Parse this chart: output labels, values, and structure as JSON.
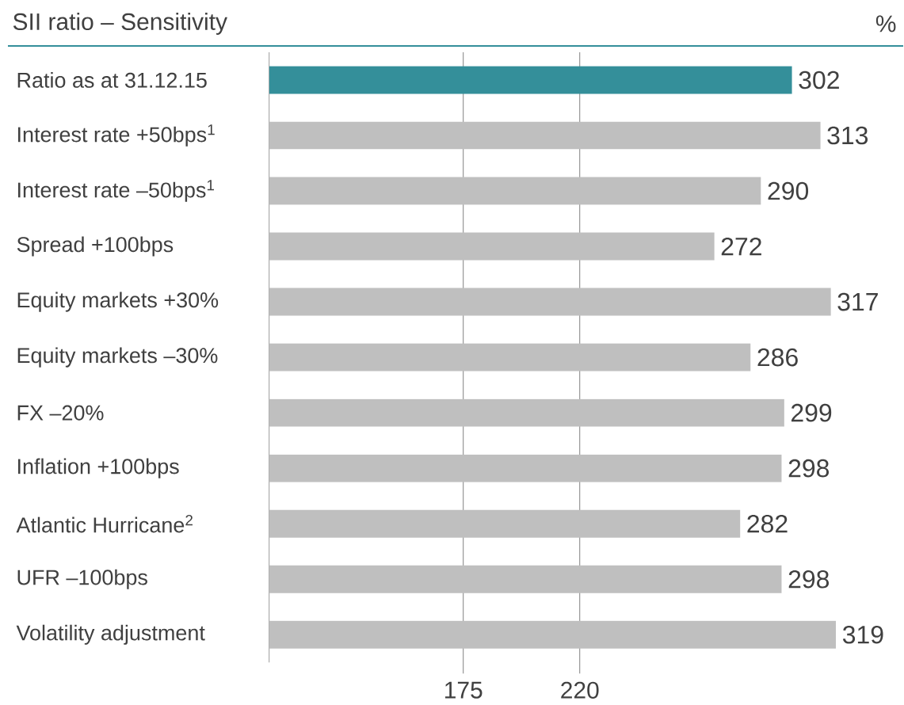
{
  "chart_data": {
    "type": "bar",
    "orientation": "horizontal",
    "title": "SII ratio – Sensitivity",
    "annotations": [
      "%"
    ],
    "categories": [
      "Ratio as at 31.12.15",
      "Interest rate +50bps$^{1}$",
      "Interest rate –50bps$^{1}$",
      "Spread +100bps",
      "Equity markets +30%",
      "Equity markets –30%",
      "FX –20%",
      "Inflation +100bps",
      "Atlantic Hurricane$^{2}$",
      "UFR –100bps",
      "Volatility adjustment"
    ],
    "values": [
      302,
      313,
      290,
      272,
      317,
      286,
      299,
      298,
      282,
      298,
      319
    ],
    "colors": [
      "#348f9a",
      "#bfbfbf",
      "#bfbfbf",
      "#bfbfbf",
      "#bfbfbf",
      "#bfbfbf",
      "#bfbfbf",
      "#bfbfbf",
      "#bfbfbf",
      "#bfbfbf",
      "#bfbfbf"
    ],
    "xlim": [
      100,
      319
    ],
    "ref_lines": [
      {
        "axis": "x",
        "value": 175,
        "label": "175",
        "color": "#808080"
      },
      {
        "axis": "x",
        "value": 220,
        "label": "220",
        "color": "#808080"
      }
    ],
    "data_labels": true,
    "tick_labels": "y"
  }
}
